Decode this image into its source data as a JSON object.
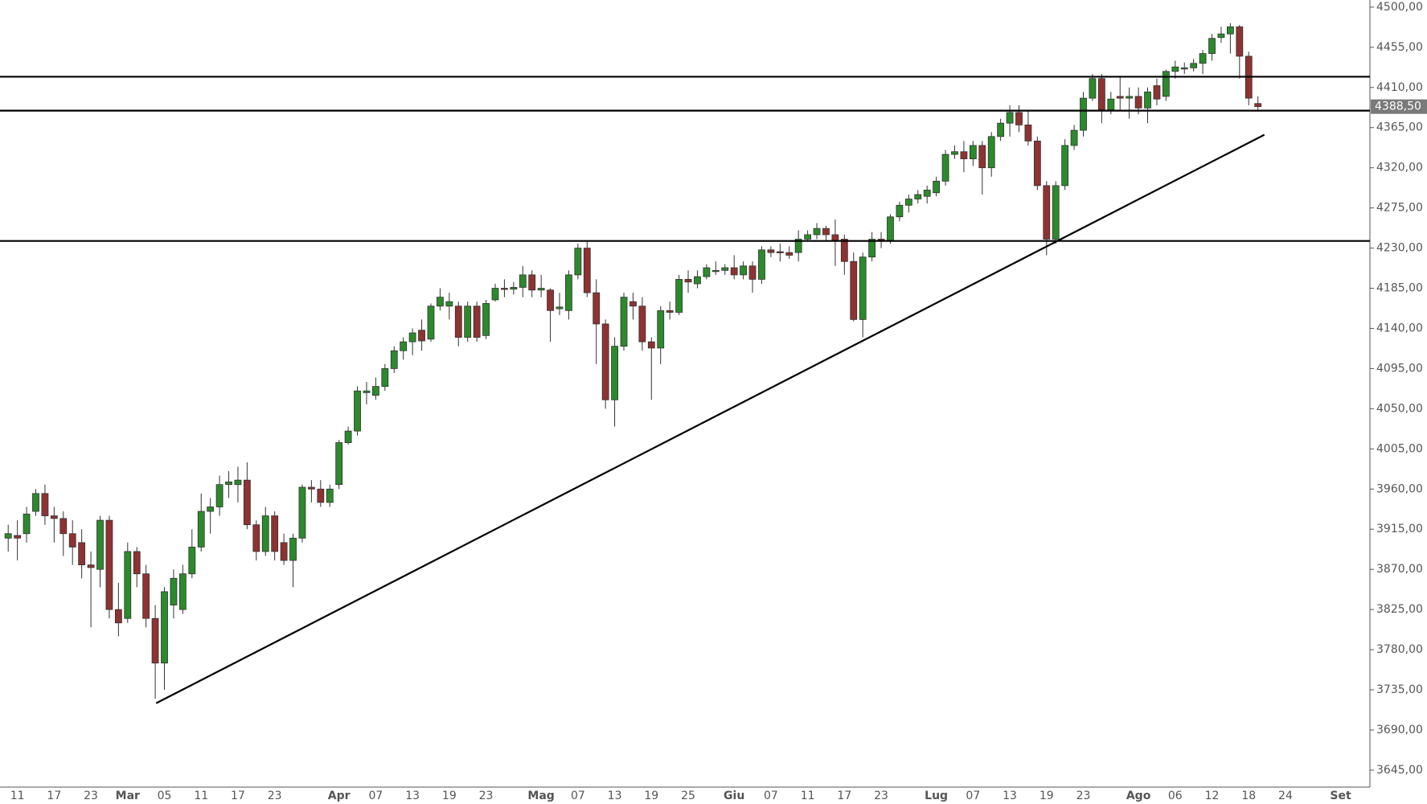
{
  "chart_data": {
    "type": "candlestick",
    "categories": [
      null,
      "11",
      null,
      null,
      null,
      "17",
      null,
      null,
      null,
      "23",
      null,
      null,
      null,
      "Mar",
      null,
      null,
      null,
      "05",
      null,
      null,
      null,
      "11",
      null,
      null,
      null,
      "17",
      null,
      null,
      null,
      "23",
      null,
      null,
      null,
      null,
      null,
      null,
      "Apr",
      null,
      null,
      null,
      "07",
      null,
      null,
      null,
      "13",
      null,
      null,
      null,
      "19",
      null,
      null,
      null,
      "23",
      null,
      null,
      null,
      null,
      null,
      "Mag",
      null,
      null,
      null,
      "07",
      null,
      null,
      null,
      "13",
      null,
      null,
      null,
      "19",
      null,
      null,
      null,
      "25",
      null,
      null,
      null,
      null,
      "Giu",
      null,
      null,
      null,
      "07",
      null,
      null,
      null,
      "11",
      null,
      null,
      null,
      "17",
      null,
      null,
      null,
      "23",
      null,
      null,
      null,
      null,
      null,
      "Lug",
      null,
      null,
      null,
      "07",
      null,
      null,
      null,
      "13",
      null,
      null,
      null,
      "19",
      null,
      null,
      null,
      "23",
      null,
      null,
      null,
      null,
      null,
      "Ago",
      null,
      null,
      null,
      "06",
      null,
      null,
      null,
      "12",
      null,
      null,
      null,
      "18",
      null,
      null,
      null,
      "24",
      null,
      null,
      null,
      null,
      null,
      "Set"
    ],
    "open": [
      3905,
      3908,
      3910,
      3935,
      3955,
      3930,
      3927,
      3910,
      3900,
      3875,
      3870,
      3925,
      3825,
      3815,
      3890,
      3865,
      3815,
      3765,
      3830,
      3825,
      3865,
      3895,
      3935,
      3940,
      3965,
      3965,
      3970,
      3920,
      3890,
      3930,
      3900,
      3880,
      3905,
      3962,
      3960,
      3945,
      3965,
      4012,
      4025,
      4068,
      4065,
      4075,
      4095,
      4115,
      4125,
      4138,
      4128,
      4165,
      4165,
      4165,
      4130,
      4165,
      4132,
      4172,
      4185,
      4184,
      4186,
      4200,
      4183,
      4183,
      4162,
      4160,
      4200,
      4230,
      4180,
      4145,
      4060,
      4120,
      4170,
      4165,
      4125,
      4118,
      4160,
      4158,
      4195,
      4190,
      4198,
      4205,
      4205,
      4208,
      4200,
      4210,
      4195,
      4228,
      4226,
      4225,
      4225,
      4240,
      4245,
      4252,
      4245,
      4240,
      4215,
      4150,
      4220,
      4240,
      4238,
      4265,
      4278,
      4285,
      4288,
      4292,
      4305,
      4335,
      4338,
      4330,
      4345,
      4320,
      4355,
      4370,
      4382,
      4368,
      4350,
      4300,
      4240,
      4300,
      4345,
      4362,
      4398,
      4420,
      4385,
      4400,
      4398,
      4400,
      4387,
      4412,
      4400,
      4428,
      4432,
      4432,
      4437,
      4448,
      4466,
      4470,
      4478,
      4445,
      4392,
      null,
      null,
      null,
      null,
      null,
      null,
      null,
      null,
      null
    ],
    "high": [
      3920,
      3925,
      3940,
      3960,
      3965,
      3940,
      3935,
      3925,
      3915,
      3890,
      3930,
      3930,
      3855,
      3900,
      3895,
      3875,
      3830,
      3850,
      3870,
      3875,
      3915,
      3955,
      3950,
      3975,
      3980,
      3985,
      3990,
      3925,
      3940,
      3935,
      3910,
      3910,
      3965,
      3970,
      3970,
      3965,
      4015,
      4030,
      4075,
      4080,
      4085,
      4100,
      4120,
      4130,
      4140,
      4150,
      4168,
      4185,
      4180,
      4170,
      4170,
      4170,
      4172,
      4190,
      4195,
      4192,
      4210,
      4205,
      4200,
      4185,
      4180,
      4205,
      4235,
      4237,
      4195,
      4150,
      4130,
      4180,
      4180,
      4175,
      4130,
      4165,
      4170,
      4200,
      4205,
      4205,
      4212,
      4215,
      4212,
      4222,
      4215,
      4215,
      4232,
      4232,
      4235,
      4232,
      4250,
      4250,
      4258,
      4255,
      4262,
      4245,
      4225,
      4225,
      4248,
      4248,
      4268,
      4282,
      4290,
      4295,
      4300,
      4310,
      4340,
      4345,
      4350,
      4350,
      4350,
      4360,
      4375,
      4390,
      4390,
      4385,
      4355,
      4305,
      4305,
      4352,
      4368,
      4405,
      4425,
      4425,
      4405,
      4422,
      4410,
      4410,
      4410,
      4420,
      4430,
      4440,
      4438,
      4442,
      4452,
      4470,
      4478,
      4482,
      4480,
      4450,
      4400,
      null,
      null,
      null,
      null,
      null,
      null,
      null,
      null,
      null
    ],
    "low": [
      3890,
      3880,
      3900,
      3930,
      3920,
      3900,
      3885,
      3875,
      3860,
      3805,
      3850,
      3815,
      3795,
      3810,
      3850,
      3805,
      3725,
      3735,
      3815,
      3820,
      3860,
      3890,
      3910,
      3930,
      3950,
      3945,
      3915,
      3880,
      3885,
      3880,
      3875,
      3850,
      3900,
      3945,
      3940,
      3940,
      3960,
      4010,
      4020,
      4055,
      4060,
      4070,
      4090,
      4105,
      4110,
      4115,
      4125,
      4160,
      4150,
      4120,
      4125,
      4125,
      4128,
      4170,
      4175,
      4178,
      4175,
      4175,
      4175,
      4125,
      4155,
      4150,
      4195,
      4175,
      4100,
      4050,
      4030,
      4115,
      4150,
      4115,
      4060,
      4100,
      4150,
      4155,
      4180,
      4185,
      4195,
      4200,
      4200,
      4195,
      4195,
      4180,
      4190,
      4220,
      4215,
      4218,
      4215,
      4238,
      4240,
      4238,
      4210,
      4200,
      4148,
      4130,
      4215,
      4230,
      4235,
      4260,
      4270,
      4280,
      4280,
      4288,
      4300,
      4330,
      4315,
      4322,
      4290,
      4310,
      4350,
      4355,
      4360,
      4345,
      4295,
      4222,
      4235,
      4295,
      4340,
      4355,
      4395,
      4370,
      4380,
      4385,
      4375,
      4380,
      4370,
      4390,
      4395,
      4420,
      4425,
      4428,
      4425,
      4440,
      4460,
      4448,
      4420,
      4390,
      4385,
      null,
      null,
      null,
      null,
      null,
      null,
      null,
      null,
      null
    ],
    "close": [
      3910,
      3905,
      3932,
      3955,
      3930,
      3927,
      3910,
      3895,
      3875,
      3872,
      3925,
      3825,
      3810,
      3890,
      3865,
      3815,
      3765,
      3845,
      3860,
      3865,
      3895,
      3935,
      3940,
      3965,
      3968,
      3970,
      3920,
      3890,
      3930,
      3890,
      3880,
      3905,
      3962,
      3960,
      3945,
      3960,
      4012,
      4025,
      4070,
      4070,
      4075,
      4095,
      4115,
      4125,
      4135,
      4126,
      4165,
      4175,
      4170,
      4130,
      4165,
      4130,
      4168,
      4185,
      4184,
      4186,
      4200,
      4183,
      4185,
      4160,
      4164,
      4200,
      4230,
      4180,
      4145,
      4060,
      4120,
      4175,
      4165,
      4125,
      4118,
      4160,
      4158,
      4195,
      4192,
      4198,
      4208,
      4205,
      4208,
      4200,
      4210,
      4195,
      4228,
      4225,
      4225,
      4222,
      4240,
      4245,
      4252,
      4245,
      4238,
      4215,
      4150,
      4220,
      4240,
      4238,
      4265,
      4278,
      4285,
      4290,
      4295,
      4305,
      4335,
      4338,
      4330,
      4345,
      4320,
      4355,
      4370,
      4382,
      4368,
      4350,
      4300,
      4240,
      4300,
      4345,
      4362,
      4398,
      4420,
      4385,
      4397,
      4398,
      4400,
      4387,
      4405,
      4397,
      4428,
      4433,
      4432,
      4437,
      4448,
      4465,
      4470,
      4478,
      4445,
      4398,
      4388.5,
      null,
      null,
      null,
      null,
      null,
      null,
      null,
      null,
      null
    ],
    "up_color": "#2b8a2b",
    "down_color": "#8f3232",
    "ylim": [
      3626,
      4508
    ],
    "yticks": [
      {
        "value": 3645,
        "label": "3645,00"
      },
      {
        "value": 3690,
        "label": "3690,00"
      },
      {
        "value": 3735,
        "label": "3735,00"
      },
      {
        "value": 3780,
        "label": "3780,00"
      },
      {
        "value": 3825,
        "label": "3825,00"
      },
      {
        "value": 3870,
        "label": "3870,00"
      },
      {
        "value": 3915,
        "label": "3915,00"
      },
      {
        "value": 3960,
        "label": "3960,00"
      },
      {
        "value": 4005,
        "label": "4005,00"
      },
      {
        "value": 4050,
        "label": "4050,00"
      },
      {
        "value": 4095,
        "label": "4095,00"
      },
      {
        "value": 4140,
        "label": "4140,00"
      },
      {
        "value": 4185,
        "label": "4185,00"
      },
      {
        "value": 4230,
        "label": "4230,00"
      },
      {
        "value": 4275,
        "label": "4275,00"
      },
      {
        "value": 4320,
        "label": "4320,00"
      },
      {
        "value": 4365,
        "label": "4365,00"
      },
      {
        "value": 4410,
        "label": "4410,00"
      },
      {
        "value": 4455,
        "label": "4455,00"
      },
      {
        "value": 4500,
        "label": "4500,00"
      }
    ],
    "levels": [
      4422,
      4384,
      4238
    ],
    "trend_line": {
      "x": [
        16.1,
        136.7
      ],
      "y": [
        3720,
        4357
      ]
    },
    "last_price": {
      "value": 4388.5,
      "label": "4388,50"
    }
  }
}
